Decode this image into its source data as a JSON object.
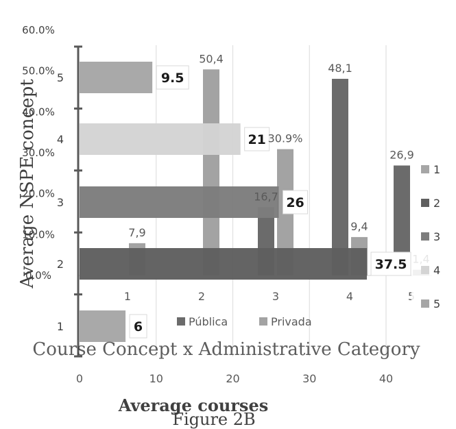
{
  "colors": {
    "publica": "#6b6b6b",
    "privada": "#a3a3a3",
    "nspe": [
      "#a6a6a6",
      "#5f5f5f",
      "#7d7d7d",
      "#d4d4d4",
      "#a6a6a6"
    ],
    "grid": "#e0e0e0",
    "axis": "#595959",
    "text": "#404040"
  },
  "chart_data": [
    {
      "type": "bar",
      "orientation": "vertical",
      "title": "Course Concept x Administrative Category",
      "categories": [
        "1",
        "2",
        "3",
        "4",
        "5"
      ],
      "ylim": [
        0,
        60
      ],
      "y_ticks": [
        "0.0%",
        "10.0%",
        "20.0%",
        "30.0%",
        "40.0%",
        "50.0%",
        "60.0%"
      ],
      "series": [
        {
          "name": "Pública",
          "values": [
            null,
            null,
            16.7,
            48.1,
            26.9
          ],
          "labels": [
            "",
            "",
            "16,7",
            "48,1",
            "26,9"
          ]
        },
        {
          "name": "Privada",
          "values": [
            7.9,
            50.4,
            30.9,
            9.4,
            1.4
          ],
          "labels": [
            "7,9",
            "50,4",
            "30.9%",
            "9,4",
            "1,4"
          ]
        }
      ],
      "legend": "bottom",
      "caption": "Figure 2B"
    },
    {
      "type": "bar",
      "orientation": "horizontal",
      "categories": [
        "5",
        "4",
        "3",
        "2",
        "1"
      ],
      "values": [
        9.5,
        21,
        26,
        37.5,
        6
      ],
      "labels": [
        "9.5",
        "21",
        "26",
        "37.5",
        "6"
      ],
      "xlim": [
        0,
        40
      ],
      "x_ticks": [
        "0",
        "10",
        "20",
        "30",
        "40"
      ],
      "xlabel": "Average courses",
      "ylabel": "Average NSPE concept",
      "legend": {
        "entries": [
          "1",
          "2",
          "3",
          "4",
          "5"
        ],
        "placement": "right"
      }
    }
  ]
}
